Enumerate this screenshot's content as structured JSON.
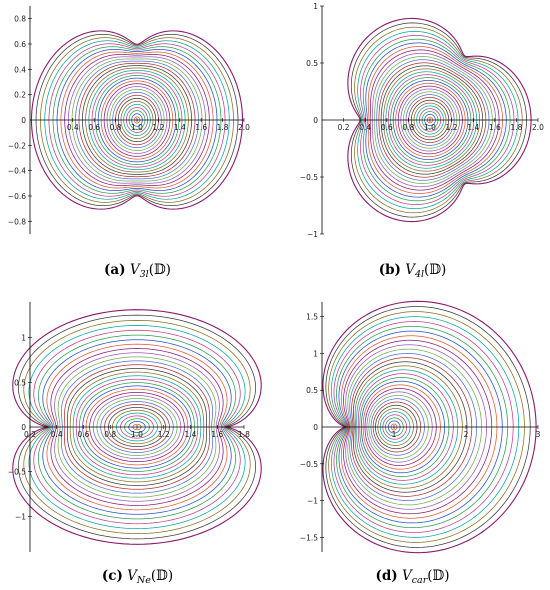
{
  "chart_data": [
    {
      "type": "contour-image",
      "function": "V_3l",
      "caption": {
        "letter": "(a)",
        "symbol": "V",
        "subscript": "3l",
        "argument": "(𝔻)"
      },
      "xlim": [
        0.0,
        2.0
      ],
      "ylim": [
        -0.9,
        0.9
      ],
      "x_tick_labels": [
        "0.4",
        "0.6",
        "0.8",
        "1.0",
        "1.2",
        "1.4",
        "1.6",
        "1.8",
        "2.0"
      ],
      "y_tick_labels": [
        "0.8",
        "0.6",
        "0.4",
        "0.2",
        "0",
        "−0.2",
        "−0.4",
        "−0.6",
        "−0.8"
      ],
      "level_count": 32,
      "max_radius": 0.99
    },
    {
      "type": "contour-image",
      "function": "V_4l",
      "caption": {
        "letter": "(b)",
        "symbol": "V",
        "subscript": "4l",
        "argument": "(𝔻)"
      },
      "xlim": [
        0.0,
        2.0
      ],
      "ylim": [
        -1.0,
        1.0
      ],
      "x_tick_labels": [
        "0.2",
        "0.4",
        "0.6",
        "0.8",
        "1.0",
        "1.2",
        "1.4",
        "1.6",
        "1.8",
        "2.0"
      ],
      "y_tick_labels": [
        "1",
        "0.5",
        "0",
        "−0.5",
        "−1"
      ],
      "level_count": 32,
      "max_radius": 0.99
    },
    {
      "type": "contour-image",
      "function": "V_Ne",
      "caption": {
        "letter": "(c)",
        "symbol": "V",
        "subscript": "Ne",
        "argument": "(𝔻)"
      },
      "xlim": [
        0.2,
        1.8
      ],
      "ylim": [
        -1.4,
        1.4
      ],
      "x_tick_labels": [
        "0.2",
        "0.4",
        "0.6",
        "0.8",
        "1.0",
        "1.2",
        "1.4",
        "1.6",
        "1.8"
      ],
      "y_tick_labels": [
        "1",
        "0.5",
        "0",
        "−0.5",
        "−1"
      ],
      "level_count": 32,
      "max_radius": 0.99
    },
    {
      "type": "contour-image",
      "function": "V_car",
      "caption": {
        "letter": "(d)",
        "symbol": "V",
        "subscript": "car",
        "argument": "(𝔻)"
      },
      "xlim": [
        0.0,
        3.0
      ],
      "ylim": [
        -1.7,
        1.7
      ],
      "x_tick_labels": [
        "1",
        "2",
        "3"
      ],
      "y_tick_labels": [
        "1.5",
        "1",
        "0.5",
        "0",
        "−0.5",
        "−1",
        "−1.5"
      ],
      "level_count": 32,
      "max_radius": 0.99
    }
  ],
  "colors": {
    "palette": [
      "#7f1d7a",
      "#e4572e",
      "#1f4fd1",
      "#2a9d4a",
      "#c13c8f",
      "#0aa5a5",
      "#8c6d1f",
      "#3b3b3b",
      "#b03030",
      "#4f6fd8",
      "#6ab04c",
      "#9b59b6"
    ],
    "outer": "#8b1a6e"
  }
}
